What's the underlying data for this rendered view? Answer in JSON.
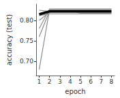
{
  "chart_data": {
    "type": "line",
    "x_label": "epoch",
    "y_label": "accuracy (test)",
    "x": [
      1,
      2,
      3,
      4,
      5,
      6,
      7,
      8
    ],
    "series": [
      {
        "color": "#8c8c8c",
        "values": [
          0.68,
          0.826,
          0.826,
          0.826,
          0.826,
          0.826,
          0.826,
          0.826
        ]
      },
      {
        "color": "#8c8c8c",
        "values": [
          0.76,
          0.823,
          0.823,
          0.823,
          0.818,
          0.818,
          0.818,
          0.818
        ]
      },
      {
        "color": "#8c8c8c",
        "values": [
          0.78,
          0.828,
          0.828,
          0.828,
          0.828,
          0.828,
          0.828,
          0.828
        ]
      },
      {
        "color": "#8c8c8c",
        "values": [
          0.8,
          0.82,
          0.82,
          0.82,
          0.82,
          0.82,
          0.82,
          0.82
        ]
      },
      {
        "color": "#8c8c8c",
        "values": [
          0.812,
          0.816,
          0.816,
          0.816,
          0.816,
          0.816,
          0.816,
          0.816
        ]
      },
      {
        "color": "#8c8c8c",
        "values": [
          0.825,
          0.822,
          0.822,
          0.822,
          0.822,
          0.822,
          0.822,
          0.822
        ]
      },
      {
        "color": "#000000",
        "line_style": "thick",
        "values": [
          0.815,
          0.822,
          0.822,
          0.822,
          0.822,
          0.822,
          0.822,
          0.822
        ]
      }
    ],
    "xlim": [
      0.7,
      8.3
    ],
    "xticks": [
      1,
      2,
      3,
      4,
      5,
      6,
      7,
      8
    ],
    "ylim": [
      0.665,
      0.84
    ],
    "yticks": [
      {
        "value": 0.7,
        "label": "0.70"
      },
      {
        "value": 0.75,
        "label": "0.75"
      },
      {
        "value": 0.8,
        "label": "0.80"
      }
    ],
    "grid": false
  }
}
